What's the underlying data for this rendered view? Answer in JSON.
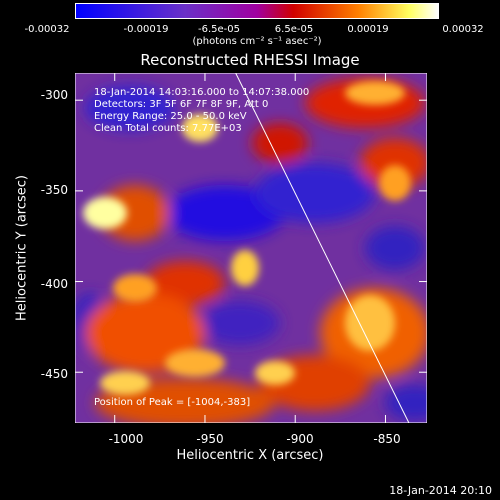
{
  "colorbar": {
    "ticks": [
      "-0.00032",
      "-0.00019",
      "-6.5e-05",
      "6.5e-05",
      "0.00019",
      "0.00032"
    ],
    "units": "(photons cm⁻² s⁻¹ asec⁻²)",
    "colors": [
      "#0000ff",
      "#8040c0",
      "#c00000",
      "#ff8000",
      "#ffff80",
      "#ffffff"
    ]
  },
  "chart_data": {
    "type": "heatmap",
    "title": "Reconstructed RHESSI Image",
    "xlabel": "Heliocentric X (arcsec)",
    "ylabel": "Heliocentric Y (arcsec)",
    "xlim": [
      -1022,
      -827
    ],
    "ylim": [
      -478,
      -285
    ],
    "x_ticks": [
      -1000,
      -950,
      -900,
      -850
    ],
    "y_ticks": [
      -300,
      -350,
      -400,
      -450
    ],
    "limb_line": [
      [
        -933,
        -285
      ],
      [
        -837,
        -478
      ]
    ],
    "annotations": [
      "18-Jan-2014 14:03:16.000 to 14:07:38.000",
      "Detectors: 3F 5F 6F 7F 8F 9F, Att 0",
      "Energy Range: 25.0 - 50.0 keV",
      "Clean     Total counts: 7.77E+03"
    ],
    "peak_label": "Position of Peak = [-1004,-383]"
  },
  "footer": {
    "timestamp": "18-Jan-2014 20:10"
  }
}
